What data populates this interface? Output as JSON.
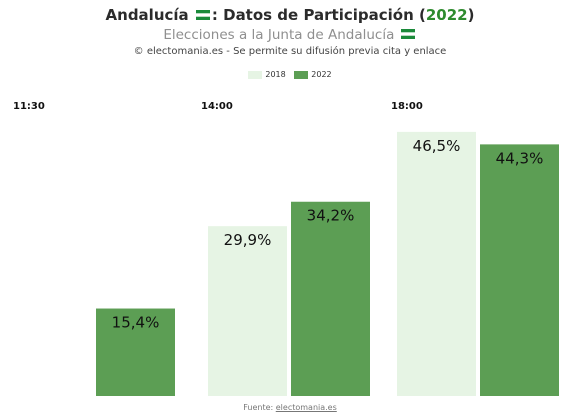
{
  "header": {
    "title_main": "Andalucía",
    "title_sep": ": Datos de Participación (",
    "title_year": "2022",
    "title_close": ")",
    "subtitle": "Elecciones a la Junta de Andalucía",
    "credit": "© electomania.es - Se permite su difusión previa cita y enlace"
  },
  "footer": {
    "source_label": "Fuente:",
    "source_link": "electomania.es"
  },
  "colors": {
    "series_2018": "#e6f4e4",
    "series_2022": "#5c9e54",
    "title_year": "#2e8b2e",
    "flag_green": "#1b8a3a"
  },
  "chart_data": {
    "type": "bar",
    "categories": [
      "11:30",
      "14:00",
      "18:00"
    ],
    "series": [
      {
        "name": "2018",
        "values": [
          null,
          29.9,
          46.5
        ],
        "labels": [
          "",
          "29,9%",
          "46,5%"
        ]
      },
      {
        "name": "2022",
        "values": [
          15.4,
          34.2,
          44.3
        ],
        "labels": [
          "15,4%",
          "34,2%",
          "44,3%"
        ]
      }
    ],
    "ylim": [
      0,
      50
    ],
    "grid": false,
    "legend": "top-center"
  }
}
